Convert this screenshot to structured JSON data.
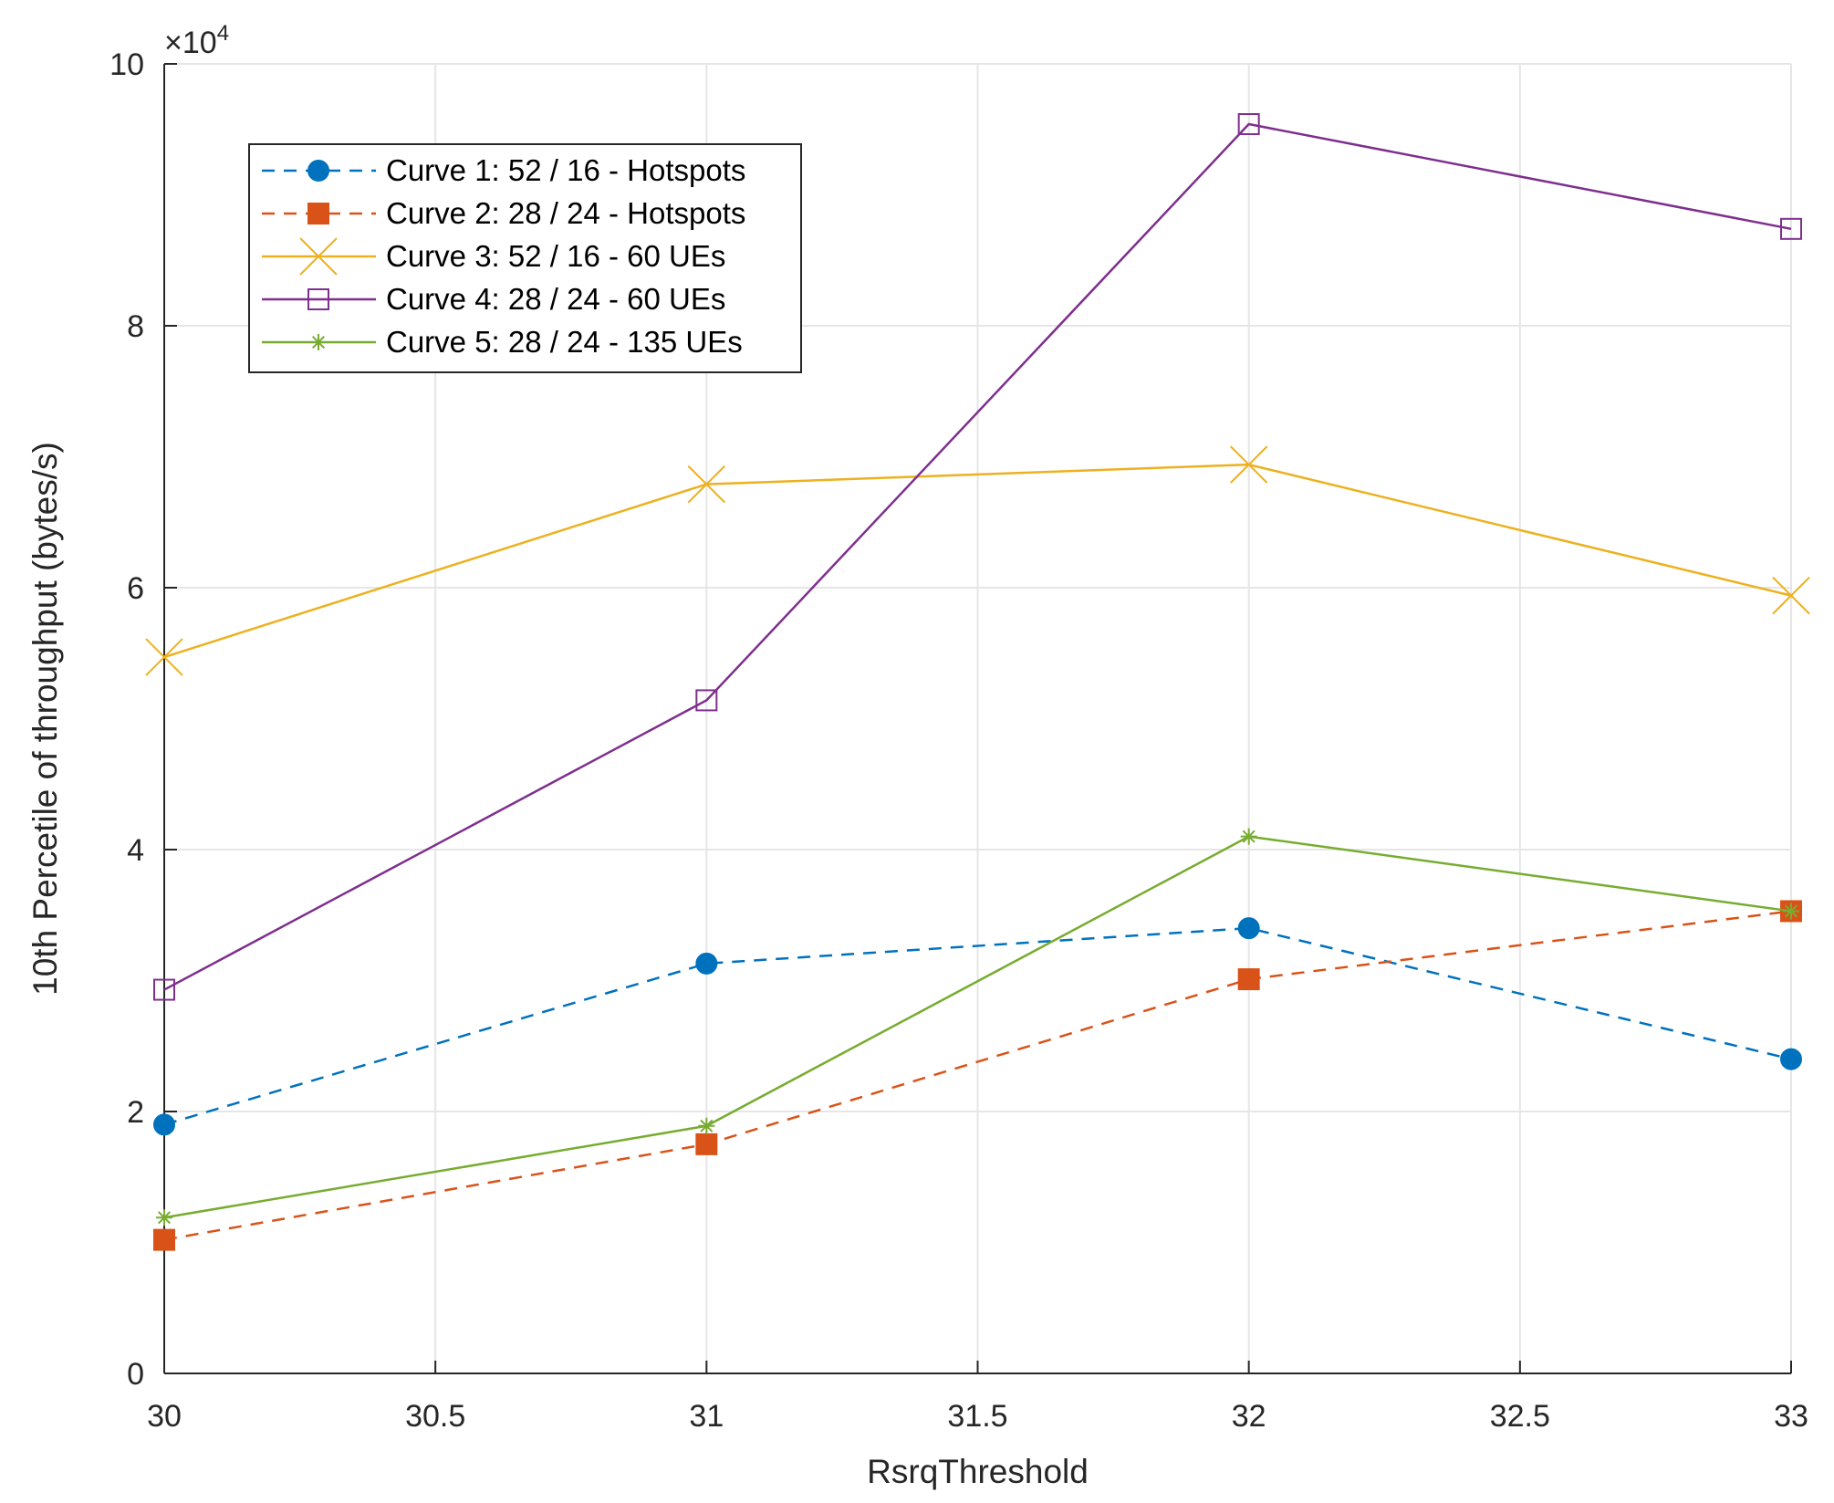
{
  "chart_data": {
    "type": "line",
    "title": "",
    "xlabel": "RsrqThreshold",
    "ylabel": "10th Percetile of throughput (bytes/s)",
    "y_exponent_label": "×10",
    "y_exponent_power": "4",
    "xlim": [
      30,
      33
    ],
    "ylim": [
      0,
      100000
    ],
    "xticks": [
      30,
      30.5,
      31,
      31.5,
      32,
      32.5,
      33
    ],
    "xtick_labels": [
      "30",
      "30.5",
      "31",
      "31.5",
      "32",
      "32.5",
      "33"
    ],
    "yticks": [
      0,
      20000,
      40000,
      60000,
      80000,
      100000
    ],
    "ytick_labels": [
      "0",
      "2",
      "4",
      "6",
      "8",
      "10"
    ],
    "grid": true,
    "legend_position": "top-left",
    "x": [
      30,
      31,
      32,
      33
    ],
    "series": [
      {
        "name": "Curve 1: 52 / 16 - Hotspots",
        "values": [
          19000,
          31300,
          34000,
          24000
        ],
        "color": "#0072BD",
        "line": "dashed",
        "marker": "filled-circle"
      },
      {
        "name": "Curve 2: 28 / 24 - Hotspots",
        "values": [
          10200,
          17500,
          30100,
          35300
        ],
        "color": "#D95319",
        "line": "dashed",
        "marker": "filled-square"
      },
      {
        "name": "Curve 3: 52 / 16 - 60 UEs",
        "values": [
          54700,
          67900,
          69400,
          59400
        ],
        "color": "#EDB120",
        "line": "solid",
        "marker": "x"
      },
      {
        "name": "Curve 4: 28 / 24 - 60 UEs",
        "values": [
          29300,
          51400,
          95400,
          87400
        ],
        "color": "#7E2F8E",
        "line": "solid",
        "marker": "open-square"
      },
      {
        "name": "Curve 5: 28 / 24 - 135 UEs",
        "values": [
          11900,
          18900,
          41000,
          35300
        ],
        "color": "#77AC30",
        "line": "solid",
        "marker": "asterisk"
      }
    ]
  }
}
